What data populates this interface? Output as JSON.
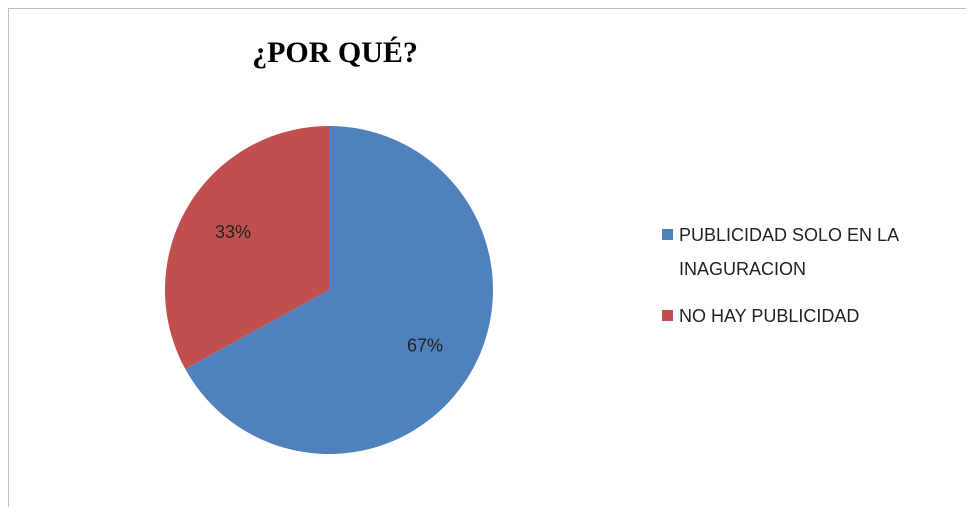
{
  "chart_data": {
    "type": "pie",
    "title": "¿POR QUÉ?",
    "categories": [
      "PUBLICIDAD SOLO EN LA INAGURACION",
      "NO HAY PUBLICIDAD"
    ],
    "values": [
      67,
      33
    ],
    "value_labels": [
      "67%",
      "33%"
    ],
    "colors": [
      "#4f81bd",
      "#c0504d"
    ],
    "legend": "right"
  }
}
